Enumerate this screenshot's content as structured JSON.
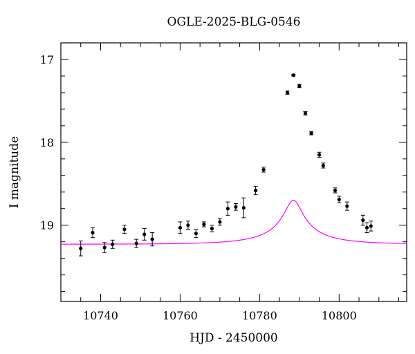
{
  "chart_data": {
    "type": "scatter",
    "title": "OGLE-2025-BLG-0546",
    "xlabel": "HJD - 2450000",
    "ylabel": "I magnitude",
    "xlim": [
      10730,
      10817
    ],
    "ylim": [
      19.92,
      16.8
    ],
    "y_inverted": true,
    "x_ticks": [
      10740,
      10760,
      10780,
      10800
    ],
    "y_ticks": [
      17,
      18,
      19
    ],
    "grid": false,
    "colors": {
      "model": "#ff00ff",
      "points": "#000000"
    },
    "series": [
      {
        "values": [
          {
            "x": 10735.0,
            "y": 19.28,
            "err": 0.09
          },
          {
            "x": 10738.0,
            "y": 19.09,
            "err": 0.06
          },
          {
            "x": 10741.0,
            "y": 19.27,
            "err": 0.06
          },
          {
            "x": 10743.0,
            "y": 19.23,
            "err": 0.05
          },
          {
            "x": 10746.0,
            "y": 19.05,
            "err": 0.05
          },
          {
            "x": 10749.0,
            "y": 19.22,
            "err": 0.05
          },
          {
            "x": 10751.0,
            "y": 19.11,
            "err": 0.07
          },
          {
            "x": 10753.0,
            "y": 19.17,
            "err": 0.08
          },
          {
            "x": 10760.0,
            "y": 19.03,
            "err": 0.07
          },
          {
            "x": 10762.0,
            "y": 19.0,
            "err": 0.05
          },
          {
            "x": 10764.0,
            "y": 19.1,
            "err": 0.05
          },
          {
            "x": 10766.0,
            "y": 18.99,
            "err": 0.03
          },
          {
            "x": 10768.0,
            "y": 19.04,
            "err": 0.04
          },
          {
            "x": 10770.0,
            "y": 18.96,
            "err": 0.04
          },
          {
            "x": 10772.0,
            "y": 18.8,
            "err": 0.08
          },
          {
            "x": 10774.0,
            "y": 18.78,
            "err": 0.04
          },
          {
            "x": 10776.0,
            "y": 18.79,
            "err": 0.12
          },
          {
            "x": 10779.0,
            "y": 18.58,
            "err": 0.05
          },
          {
            "x": 10781.0,
            "y": 18.33,
            "err": 0.03
          },
          {
            "x": 10787.0,
            "y": 17.4,
            "err": 0.02
          },
          {
            "x": 10788.5,
            "y": 17.19,
            "err": 0.01
          },
          {
            "x": 10790.0,
            "y": 17.32,
            "err": 0.02
          },
          {
            "x": 10791.5,
            "y": 17.65,
            "err": 0.02
          },
          {
            "x": 10793.0,
            "y": 17.89,
            "err": 0.02
          },
          {
            "x": 10795.0,
            "y": 18.15,
            "err": 0.03
          },
          {
            "x": 10796.0,
            "y": 18.28,
            "err": 0.03
          },
          {
            "x": 10799.0,
            "y": 18.58,
            "err": 0.03
          },
          {
            "x": 10800.0,
            "y": 18.69,
            "err": 0.04
          },
          {
            "x": 10802.0,
            "y": 18.77,
            "err": 0.05
          },
          {
            "x": 10806.0,
            "y": 18.94,
            "err": 0.06
          },
          {
            "x": 10807.0,
            "y": 19.03,
            "err": 0.06
          },
          {
            "x": 10808.0,
            "y": 19.01,
            "err": 0.06
          }
        ]
      }
    ],
    "model": {
      "t0": 10788.5,
      "tE": 15.5,
      "u0": 0.145,
      "fs": 0.106,
      "base_mag": 19.23
    }
  }
}
